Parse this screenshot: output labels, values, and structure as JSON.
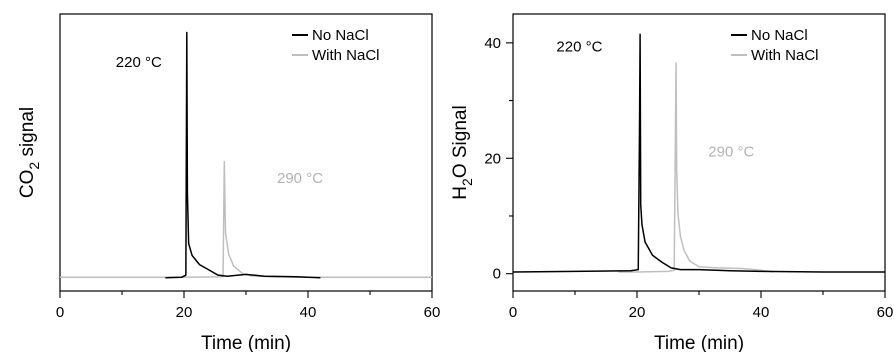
{
  "chart_data": [
    {
      "type": "line",
      "panel": "left",
      "title": "",
      "xlabel": "Time (min)",
      "ylabel_main": "CO",
      "ylabel_sub": "2",
      "ylabel_rest": " signal",
      "xlim": [
        0,
        60
      ],
      "ylim": [
        -0.5,
        10
      ],
      "x_ticks": [
        0,
        20,
        40,
        60
      ],
      "y_ticks": [],
      "y_ticks_labeled": false,
      "grid": false,
      "legend_position": "top-right",
      "series": [
        {
          "name": "No NaCl",
          "color": "#000000",
          "points": [
            [
              17,
              0
            ],
            [
              19.6,
              0.02
            ],
            [
              20.3,
              0.1
            ],
            [
              20.45,
              9.3
            ],
            [
              20.55,
              3.2
            ],
            [
              20.75,
              1.3
            ],
            [
              21.3,
              0.85
            ],
            [
              22.5,
              0.5
            ],
            [
              24,
              0.3
            ],
            [
              25.5,
              0.1
            ],
            [
              27,
              0.06
            ],
            [
              30,
              0.13
            ],
            [
              33,
              0.06
            ],
            [
              36,
              0.05
            ],
            [
              38,
              0.04
            ],
            [
              42,
              0
            ]
          ]
        },
        {
          "name": "With NaCl",
          "color": "#bfbfbf",
          "points": [
            [
              0,
              0.02
            ],
            [
              20,
              0.02
            ],
            [
              26.3,
              0.04
            ],
            [
              26.5,
              4.4
            ],
            [
              26.7,
              1.7
            ],
            [
              27.2,
              0.9
            ],
            [
              28,
              0.45
            ],
            [
              29.5,
              0.15
            ],
            [
              31,
              0.07
            ],
            [
              35,
              0.03
            ],
            [
              40,
              0.02
            ],
            [
              60,
              0.02
            ]
          ]
        }
      ],
      "annotations": [
        {
          "text": "220 °C",
          "x": 9,
          "y": 8.0,
          "color": "#000000"
        },
        {
          "text": "290 °C",
          "x": 35,
          "y": 3.6,
          "color": "#b3b3b3"
        }
      ]
    },
    {
      "type": "line",
      "panel": "right",
      "title": "",
      "xlabel": "Time (min)",
      "ylabel_main": "H",
      "ylabel_sub": "2",
      "ylabel_rest": "O Signal",
      "xlim": [
        0,
        60
      ],
      "ylim": [
        -3,
        45
      ],
      "x_ticks": [
        0,
        20,
        40,
        60
      ],
      "y_ticks": [
        0,
        20,
        40
      ],
      "y_ticks_labeled": true,
      "grid": false,
      "legend_position": "top-right",
      "series": [
        {
          "name": "No NaCl",
          "color": "#000000",
          "points": [
            [
              0,
              0.3
            ],
            [
              10,
              0.4
            ],
            [
              19,
              0.5
            ],
            [
              20.2,
              0.7
            ],
            [
              20.4,
              24.5
            ],
            [
              20.5,
              41.5
            ],
            [
              20.6,
              12
            ],
            [
              20.8,
              8.5
            ],
            [
              21.3,
              5.5
            ],
            [
              22.5,
              3.2
            ],
            [
              24,
              2.0
            ],
            [
              25.5,
              1.0
            ],
            [
              27,
              0.7
            ],
            [
              30,
              0.7
            ],
            [
              35,
              0.5
            ],
            [
              40,
              0.4
            ],
            [
              50,
              0.3
            ],
            [
              60,
              0.3
            ]
          ]
        },
        {
          "name": "With NaCl",
          "color": "#bfbfbf",
          "points": [
            [
              17,
              0.3
            ],
            [
              20,
              0.3
            ],
            [
              25,
              0.4
            ],
            [
              26,
              0.6
            ],
            [
              26.3,
              36.5
            ],
            [
              26.4,
              18
            ],
            [
              26.6,
              10.5
            ],
            [
              27.0,
              6.5
            ],
            [
              27.6,
              4.0
            ],
            [
              28.5,
              2.2
            ],
            [
              30,
              1.2
            ],
            [
              33,
              1.0
            ],
            [
              37,
              0.9
            ],
            [
              40,
              0.6
            ],
            [
              42,
              0.3
            ]
          ]
        }
      ],
      "annotations": [
        {
          "text": "220 °C",
          "x": 7,
          "y": 38.5,
          "color": "#000000"
        },
        {
          "text": "290 °C",
          "x": 31.5,
          "y": 20.3,
          "color": "#b3b3b3"
        }
      ]
    }
  ]
}
